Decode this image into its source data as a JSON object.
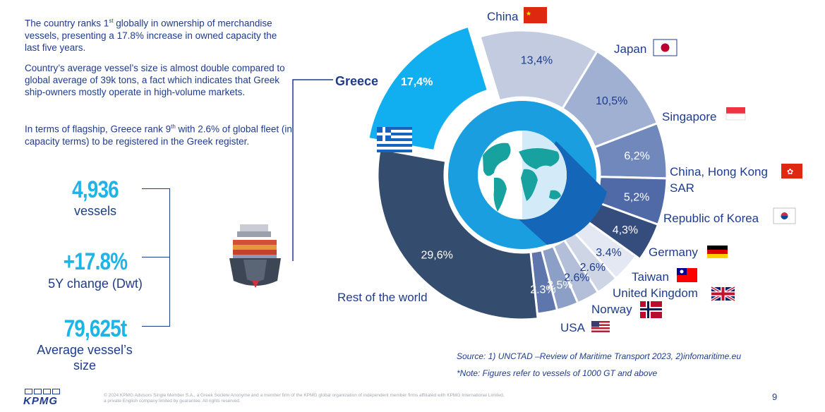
{
  "text": {
    "p1_a": "The country ranks 1",
    "p1_sup": "st",
    "p1_b": " globally in ownership of merchandise vessels, presenting a 17.8% increase in owned capacity the last five years.",
    "p2": "Country’s average vessel’s size is almost double compared to global average of 39k tons, a fact which indicates that Greek ship-owners mostly operate in high-volume markets.",
    "p3_a": "In terms of flagship, Greece rank 9",
    "p3_sup": "th",
    "p3_b": " with 2.6% of global fleet (in capacity terms) to be registered in the Greek register."
  },
  "stats": [
    {
      "value": "4,936",
      "label": "vessels"
    },
    {
      "value": "+17.8%",
      "label": "5Y change (Dwt)"
    },
    {
      "value": "79,625t",
      "label": "Average vessel’s size"
    }
  ],
  "chart_data": {
    "type": "pie",
    "variant": "exploded donut",
    "unit": "% share of owned capacity",
    "slices": [
      {
        "label": "Greece",
        "value": 17.4,
        "value_text": "17,4%",
        "color": "#12aff0",
        "highlight": true
      },
      {
        "label": "China",
        "value": 13.4,
        "value_text": "13,4%",
        "color": "#c2cbe0"
      },
      {
        "label": "Japan",
        "value": 10.5,
        "value_text": "10,5%",
        "color": "#9fb0d3"
      },
      {
        "label": "Singapore",
        "value": 6.2,
        "value_text": "6,2%",
        "color": "#7188bc"
      },
      {
        "label": "China, Hong Kong SAR",
        "value": 5.2,
        "value_text": "5,2%",
        "color": "#4f6aa6"
      },
      {
        "label": "Republic of Korea",
        "value": 4.3,
        "value_text": "4,3%",
        "color": "#344d7d"
      },
      {
        "label": "Germany",
        "value": 3.4,
        "value_text": "3.4%",
        "color": "#e3e8f2"
      },
      {
        "label": "Taiwan",
        "value": 2.6,
        "value_text": "2.6%",
        "color": "#ced6e6"
      },
      {
        "label": "United Kingdom",
        "value": 2.6,
        "value_text": "2.6%",
        "color": "#b3bfd9"
      },
      {
        "label": "Norway",
        "value": 2.5,
        "value_text": "2.5%",
        "color": "#8c9fc6"
      },
      {
        "label": "USA",
        "value": 2.3,
        "value_text": "2.3%",
        "color": "#5e76ac"
      },
      {
        "label": "Rest of the world",
        "value": 29.6,
        "value_text": "29,6%",
        "color": "#344c6e"
      }
    ],
    "labels": {
      "greece": "Greece",
      "china": "China",
      "japan": "Japan",
      "singapore": "Singapore",
      "hk_1": "China, Hong Kong",
      "hk_2": "SAR",
      "korea": "Republic of Korea",
      "germany": "Germany",
      "taiwan": "Taiwan",
      "uk": "United Kingdom",
      "norway": "Norway",
      "usa": "USA",
      "rest": "Rest of the world"
    }
  },
  "source": "Source: 1) UNCTAD –Review of Maritime Transport 2023, 2)infomaritime.eu",
  "note": "*Note: Figures refer to vessels of 1000 GT and above",
  "footer": {
    "logo": "KPMG",
    "line1": "© 2024 KPMG Advisors Single Member S.A., a Greek Societe Anonyme and a member firm of the KPMG global organization of independent member firms affiliated with KPMG International Limited,",
    "line2": "a private English company limited by guarantee. All rights reserved.",
    "page": "9"
  },
  "colors": {
    "navy": "#1e3c8c",
    "cyan": "#1fb4e6"
  }
}
